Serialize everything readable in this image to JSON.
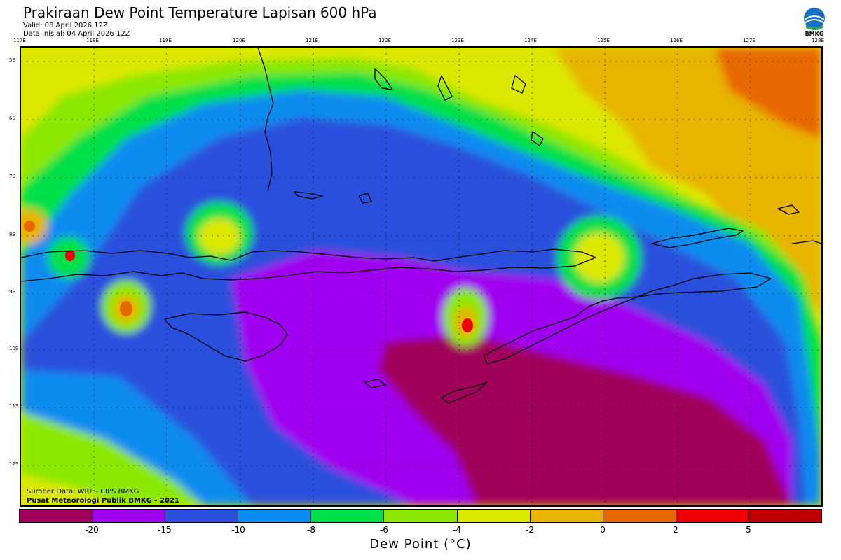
{
  "header": {
    "title": "Prakiraan Dew Point Temperature Lapisan 600 hPa",
    "valid": "Valid: 08 April 2026 12Z",
    "init": "Data inisial: 04 April 2026 12Z"
  },
  "logo": {
    "icon": "bmkg-logo",
    "text": "BMKG"
  },
  "axes": {
    "lon_labels": [
      "117E",
      "118E",
      "119E",
      "120E",
      "121E",
      "122E",
      "123E",
      "124E",
      "125E",
      "126E",
      "127E",
      "128E"
    ],
    "lat_labels": [
      "5S",
      "6S",
      "7S",
      "8S",
      "9S",
      "10S",
      "11S",
      "12S"
    ]
  },
  "credits": {
    "source": "Sumber Data: WRF - CIPS BMKG",
    "org": "Pusat Meteorologi Publik BMKG - 2021"
  },
  "colorbar": {
    "title": "Dew Point (°C)",
    "colors": [
      "#a0005a",
      "#a000f0",
      "#2a4fdc",
      "#0a8cf0",
      "#00e048",
      "#8ce800",
      "#dde800",
      "#e8b400",
      "#e86800",
      "#f00000",
      "#c00000"
    ],
    "ticks": [
      "-20",
      "-15",
      "-10",
      "-8",
      "-6",
      "-4",
      "-2",
      "0",
      "2",
      "5"
    ]
  }
}
